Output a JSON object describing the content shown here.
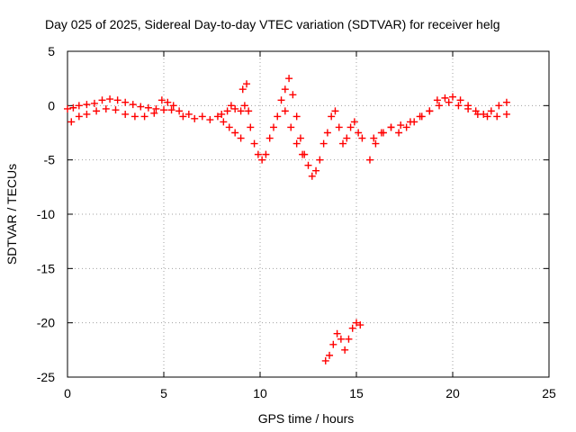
{
  "chart_data": {
    "type": "scatter",
    "title": "Day 025 of 2025, Sidereal Day-to-day VTEC variation (SDTVAR) for receiver helg",
    "xlabel": "GPS time / hours",
    "ylabel": "SDTVAR / TECUs",
    "xlim": [
      0,
      25
    ],
    "ylim": [
      -25,
      5
    ],
    "xticks": [
      0,
      5,
      10,
      15,
      20,
      25
    ],
    "yticks": [
      5,
      0,
      -5,
      -10,
      -15,
      -20,
      -25
    ],
    "xtick_labels": [
      "0",
      "5",
      "10",
      "15",
      "20",
      "25"
    ],
    "ytick_labels": [
      "5",
      "0",
      "-5",
      "-10",
      "-15",
      "-20",
      "-25"
    ],
    "grid": true,
    "marker": "+",
    "color": "#ff0000",
    "series": [
      {
        "name": "SDTVAR",
        "x": [
          0.0,
          0.3,
          0.6,
          1.0,
          1.4,
          1.8,
          2.2,
          2.6,
          3.0,
          3.4,
          3.8,
          4.2,
          4.6,
          5.0,
          5.4,
          5.8,
          0.2,
          0.6,
          1.0,
          1.5,
          2.0,
          2.5,
          3.0,
          3.5,
          4.0,
          4.5,
          4.9,
          5.2,
          5.5,
          6.0,
          6.3,
          6.6,
          7.0,
          7.4,
          7.8,
          8.0,
          8.3,
          8.5,
          8.7,
          9.0,
          9.2,
          9.4,
          8.1,
          8.4,
          8.7,
          9.0,
          9.5,
          9.7,
          9.9,
          10.1,
          10.3,
          10.5,
          10.7,
          10.9,
          11.1,
          11.3,
          11.5,
          11.7,
          11.9,
          12.1,
          12.3,
          12.5,
          12.7,
          12.9,
          13.1,
          13.3,
          13.5,
          13.7,
          13.9,
          14.1,
          14.3,
          14.5,
          14.7,
          14.9,
          15.1,
          15.3,
          9.1,
          9.3,
          11.3,
          11.6,
          11.9,
          12.2,
          13.4,
          13.6,
          13.8,
          14.0,
          14.2,
          14.4,
          14.6,
          14.8,
          15.0,
          15.2,
          15.7,
          16.0,
          16.4,
          16.8,
          17.2,
          17.6,
          18.0,
          18.4,
          18.8,
          19.2,
          19.6,
          20.0,
          20.4,
          20.8,
          21.2,
          21.6,
          22.0,
          22.4,
          22.8,
          15.9,
          16.3,
          16.8,
          17.3,
          17.8,
          18.3,
          18.8,
          19.3,
          19.8,
          20.3,
          20.8,
          21.3,
          21.8,
          22.3,
          22.8
        ],
        "y": [
          -0.3,
          -0.2,
          0.0,
          0.1,
          0.2,
          0.5,
          0.6,
          0.5,
          0.3,
          0.1,
          -0.1,
          -0.2,
          -0.3,
          -0.4,
          -0.4,
          -0.5,
          -1.5,
          -1.0,
          -0.8,
          -0.5,
          -0.3,
          -0.4,
          -0.8,
          -1.0,
          -1.0,
          -0.7,
          0.5,
          0.3,
          0.0,
          -1.0,
          -0.8,
          -1.2,
          -1.0,
          -1.3,
          -1.0,
          -0.8,
          -0.5,
          0.0,
          -0.3,
          -0.5,
          0.0,
          -0.5,
          -1.5,
          -2.0,
          -2.5,
          -3.0,
          -2.0,
          -3.5,
          -4.5,
          -5.0,
          -4.5,
          -3.0,
          -2.0,
          -1.0,
          0.5,
          1.5,
          2.5,
          1.0,
          -1.0,
          -3.0,
          -4.5,
          -5.5,
          -6.5,
          -6.0,
          -5.0,
          -3.5,
          -2.5,
          -1.0,
          -0.5,
          -2.0,
          -3.5,
          -3.0,
          -2.0,
          -1.5,
          -2.5,
          -3.0,
          1.5,
          2.0,
          -0.5,
          -2.0,
          -3.5,
          -4.5,
          -23.5,
          -23.0,
          -22.0,
          -21.0,
          -21.5,
          -22.5,
          -21.5,
          -20.5,
          -20.0,
          -20.2,
          -5.0,
          -3.5,
          -2.5,
          -2.0,
          -2.5,
          -2.0,
          -1.5,
          -1.0,
          -0.5,
          0.5,
          0.7,
          0.8,
          0.5,
          0.0,
          -0.5,
          -0.8,
          -0.5,
          0.0,
          0.3,
          -3.0,
          -2.5,
          -2.0,
          -1.8,
          -1.5,
          -1.0,
          -0.5,
          0.0,
          0.3,
          0.0,
          -0.3,
          -0.8,
          -1.0,
          -1.0,
          -0.8
        ]
      }
    ]
  }
}
